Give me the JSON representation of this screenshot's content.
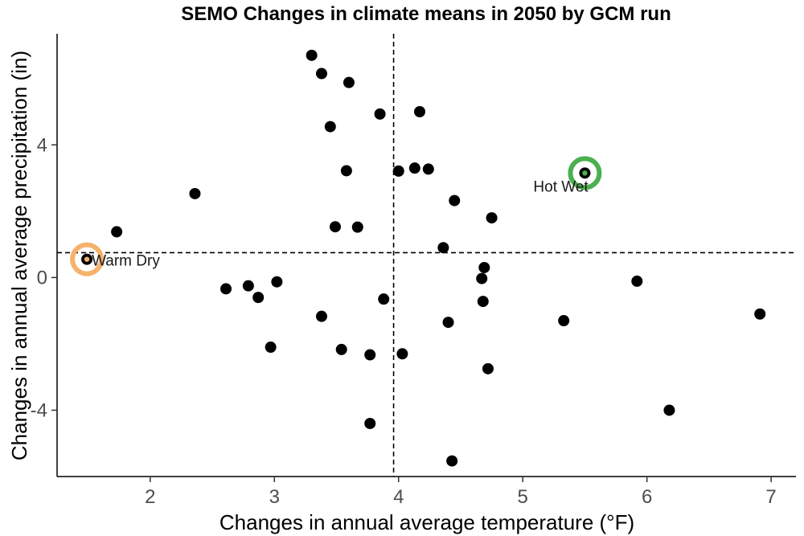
{
  "chart_data": {
    "type": "scatter",
    "title": "SEMO Changes in climate means in 2050 by GCM run",
    "xlabel": "Changes in annual average temperature (°F)",
    "ylabel": "Changes in annual average precipitation (in)",
    "xlim": [
      1.25,
      7.2
    ],
    "ylim": [
      -6.0,
      7.35
    ],
    "xticks": [
      2,
      3,
      4,
      5,
      6,
      7
    ],
    "yticks": [
      -4,
      0,
      4
    ],
    "grid": false,
    "reference_lines": {
      "x": 3.96,
      "y": 0.75
    },
    "points": [
      {
        "x": 1.49,
        "y": 0.55
      },
      {
        "x": 1.73,
        "y": 1.38
      },
      {
        "x": 2.36,
        "y": 2.53
      },
      {
        "x": 2.61,
        "y": -0.34
      },
      {
        "x": 2.79,
        "y": -0.25
      },
      {
        "x": 2.87,
        "y": -0.6
      },
      {
        "x": 2.97,
        "y": -2.1
      },
      {
        "x": 3.02,
        "y": -0.13
      },
      {
        "x": 3.3,
        "y": 6.7
      },
      {
        "x": 3.38,
        "y": 6.15
      },
      {
        "x": 3.38,
        "y": -1.17
      },
      {
        "x": 3.45,
        "y": 4.55
      },
      {
        "x": 3.49,
        "y": 1.53
      },
      {
        "x": 3.54,
        "y": -2.17
      },
      {
        "x": 3.58,
        "y": 3.22
      },
      {
        "x": 3.6,
        "y": 5.88
      },
      {
        "x": 3.67,
        "y": 1.52
      },
      {
        "x": 3.77,
        "y": -2.33
      },
      {
        "x": 3.77,
        "y": -4.4
      },
      {
        "x": 3.85,
        "y": 4.93
      },
      {
        "x": 3.88,
        "y": -0.65
      },
      {
        "x": 4.0,
        "y": 3.21
      },
      {
        "x": 4.03,
        "y": -2.3
      },
      {
        "x": 4.13,
        "y": 3.3
      },
      {
        "x": 4.17,
        "y": 5.0
      },
      {
        "x": 4.24,
        "y": 3.27
      },
      {
        "x": 4.36,
        "y": 0.9
      },
      {
        "x": 4.4,
        "y": -1.35
      },
      {
        "x": 4.43,
        "y": -5.53
      },
      {
        "x": 4.45,
        "y": 2.32
      },
      {
        "x": 4.67,
        "y": -0.03
      },
      {
        "x": 4.68,
        "y": -0.72
      },
      {
        "x": 4.69,
        "y": 0.3
      },
      {
        "x": 4.72,
        "y": -2.75
      },
      {
        "x": 4.75,
        "y": 1.8
      },
      {
        "x": 5.33,
        "y": -1.3
      },
      {
        "x": 5.5,
        "y": 3.15
      },
      {
        "x": 5.92,
        "y": -0.11
      },
      {
        "x": 6.18,
        "y": -4.0
      },
      {
        "x": 6.91,
        "y": -1.1
      }
    ],
    "annotations": [
      {
        "label": "Warm Dry",
        "x": 1.49,
        "y": 0.55,
        "ring_color": "#f6b26b",
        "label_side": "right"
      },
      {
        "label": "Hot Wet",
        "x": 5.5,
        "y": 3.15,
        "ring_color": "#4caf50",
        "label_side": "below-left"
      }
    ],
    "point_color": "#000000"
  }
}
